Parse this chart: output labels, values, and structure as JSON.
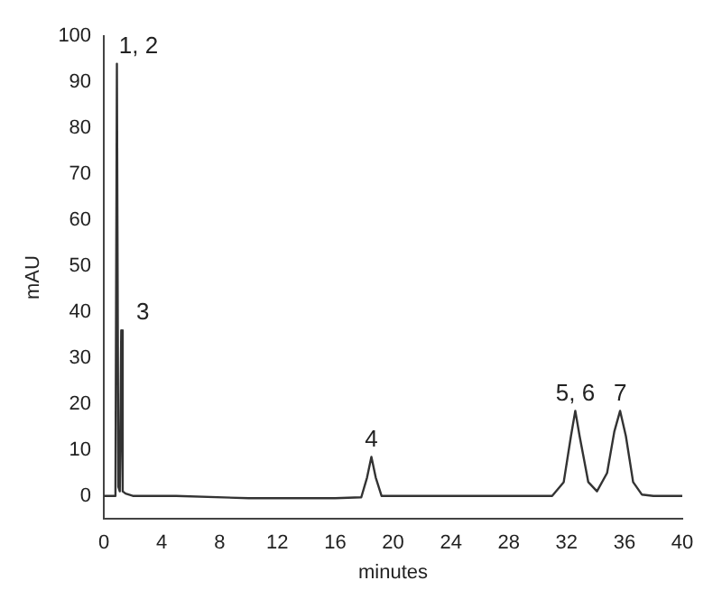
{
  "chart_data": {
    "type": "line",
    "xlabel": "minutes",
    "ylabel": "mAU",
    "x": [
      0,
      0.7,
      0.8,
      0.9,
      1.0,
      1.1,
      1.2,
      1.3,
      1.5,
      2,
      5,
      10,
      16,
      17.8,
      18.2,
      18.5,
      18.8,
      19.2,
      25,
      31,
      31.8,
      32.3,
      32.6,
      32.9,
      33.5,
      34.1,
      34.8,
      35.3,
      35.7,
      36.1,
      36.6,
      37.2,
      38,
      40
    ],
    "series": [
      {
        "color": "#333333",
        "values": [
          0,
          0,
          0.5,
          94,
          2,
          1,
          36,
          1,
          0.5,
          0,
          0,
          -0.5,
          -0.5,
          -0.3,
          4,
          8.5,
          4,
          0,
          0,
          0,
          3,
          13,
          18.5,
          13,
          3,
          1,
          5,
          14,
          18.5,
          13,
          3,
          0.3,
          0,
          0
        ]
      }
    ],
    "xlim": [
      0,
      40
    ],
    "xticks": [
      0,
      4,
      8,
      12,
      16,
      20,
      24,
      28,
      32,
      36,
      40
    ],
    "ylim": [
      -5,
      100
    ],
    "yticks": [
      0,
      10,
      20,
      30,
      40,
      50,
      60,
      70,
      80,
      90,
      100
    ],
    "grid": false,
    "legend": false,
    "marker": "none",
    "line_style": "solid",
    "annotations": [
      {
        "text": "1, 2",
        "x": 0.9,
        "y": 94
      },
      {
        "text": "3",
        "x": 1.2,
        "y": 36
      },
      {
        "text": "4",
        "x": 18.5,
        "y": 8.5
      },
      {
        "text": "5, 6",
        "x": 32.6,
        "y": 18.5
      },
      {
        "text": "7",
        "x": 35.7,
        "y": 18.5
      }
    ]
  }
}
